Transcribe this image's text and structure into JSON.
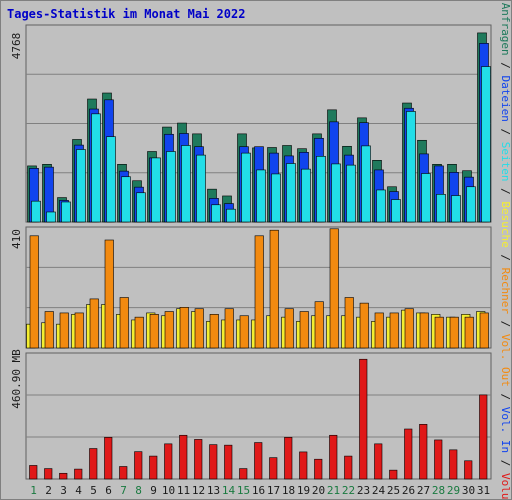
{
  "title": "Tages-Statistik im Monat Mai 2022",
  "colors": {
    "background": "#c0c0c0",
    "title": "#0000c8",
    "grid": "#808080",
    "anfragen": "#1f7a5c",
    "dateien": "#1144ee",
    "seiten": "#22dde8",
    "besuche": "#f5ee30",
    "rechner": "#f28a10",
    "volumen": "#e01818",
    "weekday_label": "#1a7a40",
    "normal_label": "#1a1a1a"
  },
  "chart_data": [
    {
      "type": "bar",
      "panel": "requests",
      "ymax_label": "4768",
      "ylim": [
        0,
        4768
      ],
      "categories": [
        "1",
        "2",
        "3",
        "4",
        "5",
        "6",
        "7",
        "8",
        "9",
        "10",
        "11",
        "12",
        "13",
        "14",
        "15",
        "16",
        "17",
        "18",
        "19",
        "20",
        "21",
        "22",
        "23",
        "24",
        "25",
        "26",
        "27",
        "28",
        "29",
        "30",
        "31"
      ],
      "series": [
        {
          "name": "Anfragen",
          "values": [
            1400,
            1440,
            610,
            2060,
            3070,
            3220,
            1440,
            1030,
            1760,
            2370,
            2470,
            2200,
            820,
            650,
            2200,
            1850,
            1860,
            1910,
            1830,
            2200,
            2800,
            1890,
            2600,
            1540,
            880,
            2970,
            2040,
            1440,
            1440,
            1280,
            4720
          ]
        },
        {
          "name": "Dateien",
          "values": [
            1340,
            1370,
            540,
            1920,
            2820,
            3050,
            1270,
            870,
            1600,
            2190,
            2210,
            1880,
            590,
            460,
            1880,
            1880,
            1720,
            1650,
            1740,
            2090,
            2500,
            1670,
            2480,
            1300,
            760,
            2840,
            1700,
            1400,
            1240,
            1120,
            4460
          ]
        },
        {
          "name": "Seiten",
          "values": [
            520,
            250,
            500,
            1810,
            2700,
            2130,
            1130,
            730,
            1600,
            1760,
            1910,
            1670,
            430,
            320,
            1720,
            1300,
            1200,
            1460,
            1320,
            1640,
            1450,
            1420,
            1900,
            800,
            560,
            2760,
            1210,
            690,
            660,
            880,
            3880
          ]
        }
      ]
    },
    {
      "type": "bar",
      "panel": "visits",
      "ymax_label": "410",
      "ylim": [
        0,
        410
      ],
      "categories": [
        "1",
        "2",
        "3",
        "4",
        "5",
        "6",
        "7",
        "8",
        "9",
        "10",
        "11",
        "12",
        "13",
        "14",
        "15",
        "16",
        "17",
        "18",
        "19",
        "20",
        "21",
        "22",
        "23",
        "24",
        "25",
        "26",
        "27",
        "28",
        "29",
        "30",
        "31"
      ],
      "series": [
        {
          "name": "Besuche",
          "values": [
            85,
            90,
            85,
            120,
            155,
            155,
            120,
            100,
            125,
            115,
            140,
            130,
            95,
            100,
            100,
            100,
            115,
            110,
            95,
            115,
            115,
            115,
            110,
            95,
            110,
            135,
            125,
            120,
            110,
            120,
            130
          ]
        },
        {
          "name": "Rechner",
          "values": [
            400,
            130,
            125,
            125,
            175,
            385,
            180,
            110,
            120,
            130,
            145,
            140,
            120,
            140,
            115,
            400,
            420,
            140,
            130,
            165,
            425,
            180,
            160,
            125,
            125,
            140,
            125,
            110,
            110,
            110,
            125
          ]
        }
      ]
    },
    {
      "type": "bar",
      "panel": "volume",
      "ymax_label": "460.90 MB",
      "ylim": [
        0,
        460.9
      ],
      "categories": [
        "1",
        "2",
        "3",
        "4",
        "5",
        "6",
        "7",
        "8",
        "9",
        "10",
        "11",
        "12",
        "13",
        "14",
        "15",
        "16",
        "17",
        "18",
        "19",
        "20",
        "21",
        "22",
        "23",
        "24",
        "25",
        "26",
        "27",
        "28",
        "29",
        "30",
        "31"
      ],
      "series": [
        {
          "name": "Volumen",
          "values": [
            52,
            40,
            22,
            38,
            117,
            160,
            48,
            105,
            88,
            135,
            168,
            152,
            132,
            130,
            40,
            140,
            82,
            160,
            104,
            76,
            168,
            88,
            460,
            135,
            34,
            192,
            210,
            150,
            112,
            70,
            323
          ]
        }
      ]
    }
  ],
  "legend": {
    "right_labels": [
      {
        "text": "Anfragen",
        "color": "#1f7a5c"
      },
      {
        "text": " / ",
        "color": "#1a1a1a"
      },
      {
        "text": "Dateien",
        "color": "#1144ee"
      },
      {
        "text": " / ",
        "color": "#1a1a1a"
      },
      {
        "text": "Seiten",
        "color": "#22dde8"
      },
      {
        "text": " / ",
        "color": "#1a1a1a"
      },
      {
        "text": "Besuche",
        "color": "#f5ee30"
      },
      {
        "text": " / ",
        "color": "#1a1a1a"
      },
      {
        "text": "Rechner",
        "color": "#f28a10"
      },
      {
        "text": " / ",
        "color": "#1a1a1a"
      },
      {
        "text": "Vol. Out",
        "color": "#f28a10"
      },
      {
        "text": " / ",
        "color": "#1a1a1a"
      },
      {
        "text": "Vol. In",
        "color": "#1144ee"
      },
      {
        "text": " / ",
        "color": "#1a1a1a"
      },
      {
        "text": "Volumen",
        "color": "#e01818"
      }
    ]
  },
  "weekend_days": [
    1,
    7,
    8,
    14,
    15,
    21,
    22,
    28,
    29
  ]
}
